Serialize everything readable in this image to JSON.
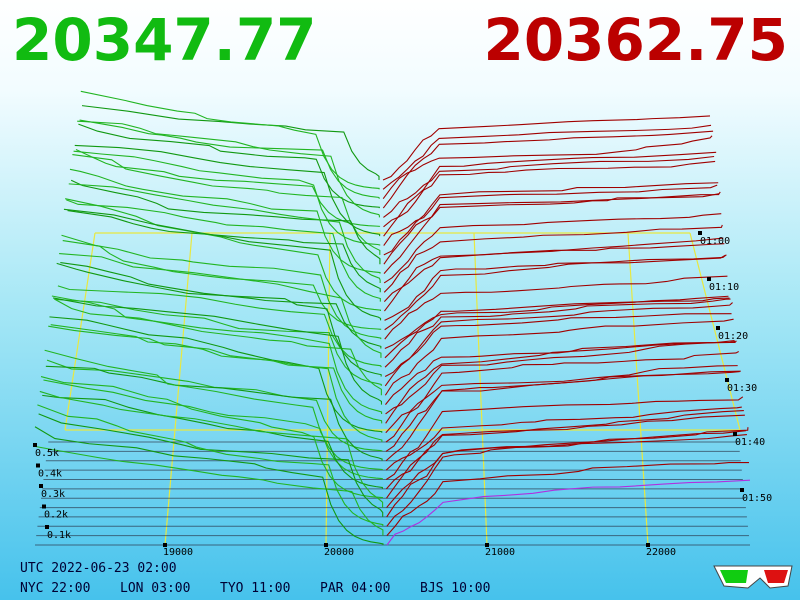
{
  "header": {
    "bid": "20347.77",
    "ask": "20362.75"
  },
  "price_axis": [
    "19000",
    "20000",
    "21000",
    "22000"
  ],
  "depth_axis": [
    "0.5k",
    "0.4k",
    "0.3k",
    "0.2k",
    "0.1k"
  ],
  "time_axis": [
    "01:00",
    "01:10",
    "01:20",
    "01:30",
    "01:40",
    "01:50"
  ],
  "footer": {
    "utc": "UTC 2022-06-23 02:00",
    "zones": [
      "NYC 22:00",
      "LON 03:00",
      "TYO 11:00",
      "PAR 04:00",
      "BJS 10:00"
    ]
  }
}
